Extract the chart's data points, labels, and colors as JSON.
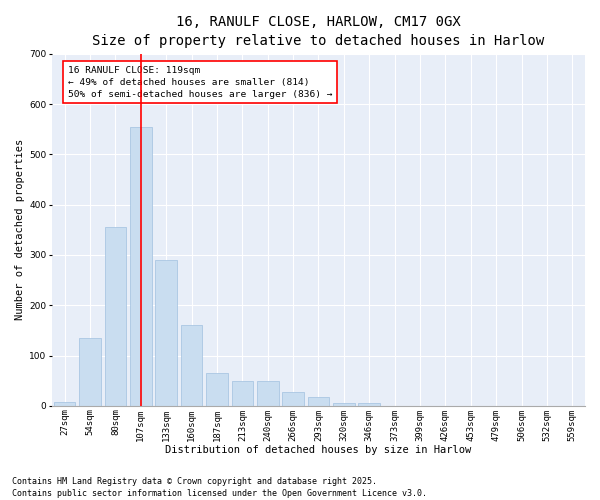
{
  "title_line1": "16, RANULF CLOSE, HARLOW, CM17 0GX",
  "title_line2": "Size of property relative to detached houses in Harlow",
  "xlabel": "Distribution of detached houses by size in Harlow",
  "ylabel": "Number of detached properties",
  "bar_color": "#c9ddf0",
  "bar_edge_color": "#a0c0e0",
  "background_color": "#e8eef8",
  "grid_color": "#ffffff",
  "categories": [
    "27sqm",
    "54sqm",
    "80sqm",
    "107sqm",
    "133sqm",
    "160sqm",
    "187sqm",
    "213sqm",
    "240sqm",
    "266sqm",
    "293sqm",
    "320sqm",
    "346sqm",
    "373sqm",
    "399sqm",
    "426sqm",
    "453sqm",
    "479sqm",
    "506sqm",
    "532sqm",
    "559sqm"
  ],
  "values": [
    8,
    135,
    355,
    555,
    290,
    160,
    65,
    50,
    50,
    28,
    18,
    5,
    5,
    0,
    0,
    0,
    0,
    0,
    0,
    0,
    0
  ],
  "annotation_text": "16 RANULF CLOSE: 119sqm\n← 49% of detached houses are smaller (814)\n50% of semi-detached houses are larger (836) →",
  "ylim": [
    0,
    700
  ],
  "yticks": [
    0,
    100,
    200,
    300,
    400,
    500,
    600,
    700
  ],
  "footnote": "Contains HM Land Registry data © Crown copyright and database right 2025.\nContains public sector information licensed under the Open Government Licence v3.0.",
  "title_fontsize": 10,
  "subtitle_fontsize": 8.5,
  "axis_label_fontsize": 7.5,
  "tick_fontsize": 6.5,
  "annotation_fontsize": 6.8,
  "footnote_fontsize": 6
}
